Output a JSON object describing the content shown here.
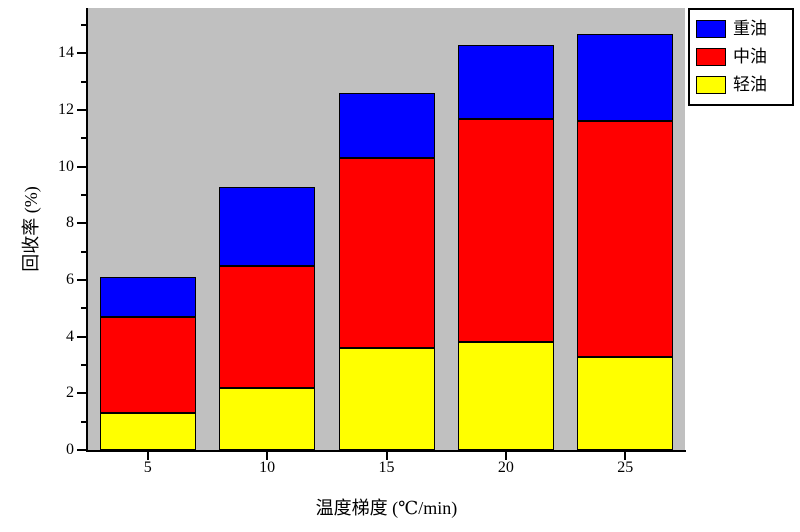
{
  "chart_data": {
    "type": "bar",
    "stacked": true,
    "title": "",
    "xlabel": "温度梯度 (℃/min)",
    "ylabel": "回收率 (%)",
    "categories": [
      5,
      10,
      15,
      20,
      25
    ],
    "series": [
      {
        "name": "轻油",
        "color": "#ffff00",
        "values": [
          1.3,
          2.2,
          3.6,
          3.8,
          3.3
        ]
      },
      {
        "name": "中油",
        "color": "#ff0000",
        "values": [
          3.4,
          4.3,
          6.7,
          7.9,
          8.3
        ]
      },
      {
        "name": "重油",
        "color": "#0000ff",
        "values": [
          1.4,
          2.8,
          2.3,
          2.6,
          3.1
        ]
      }
    ],
    "stack_totals": [
      6.1,
      9.3,
      12.6,
      14.3,
      14.7
    ],
    "ylim": [
      0,
      15.6
    ],
    "yticks": [
      0,
      2,
      4,
      6,
      8,
      10,
      12,
      14
    ],
    "legend": {
      "position": "top-right-outside",
      "entries": [
        "重油",
        "中油",
        "轻油"
      ]
    },
    "plot_bg": "#c0c0c0",
    "grid": false
  }
}
